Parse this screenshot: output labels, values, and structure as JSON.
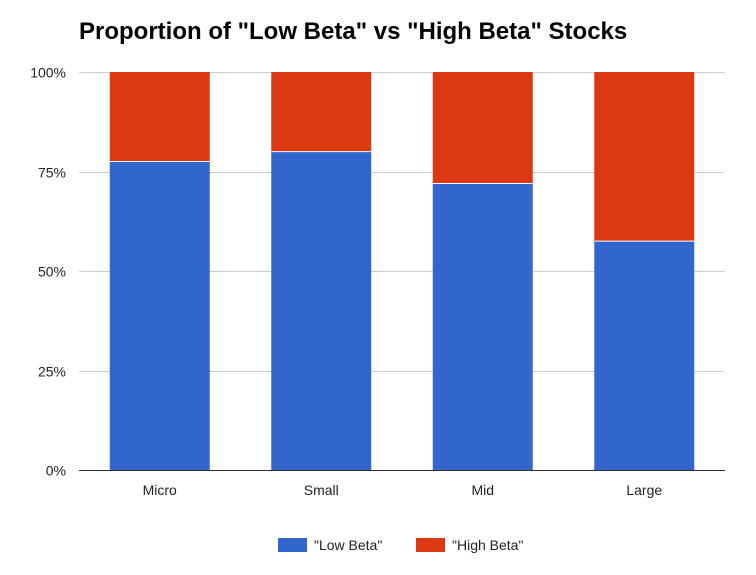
{
  "chart_data": {
    "type": "bar",
    "stacked": true,
    "title": "Proportion of \"Low Beta\" vs \"High Beta\" Stocks",
    "categories": [
      "Micro",
      "Small",
      "Mid",
      "Large"
    ],
    "series": [
      {
        "name": "\"Low Beta\"",
        "values": [
          77.5,
          80,
          72,
          57.5
        ],
        "color": "#3366cc"
      },
      {
        "name": "\"High Beta\"",
        "values": [
          22.5,
          20,
          28,
          42.5
        ],
        "color": "#dc3912"
      }
    ],
    "ylim": [
      0,
      100
    ],
    "yticks": [
      0,
      25,
      50,
      75,
      100
    ],
    "ytick_labels": [
      "0%",
      "25%",
      "50%",
      "75%",
      "100%"
    ],
    "xlabel": "",
    "ylabel": "",
    "grid": true,
    "legend_position": "bottom"
  }
}
